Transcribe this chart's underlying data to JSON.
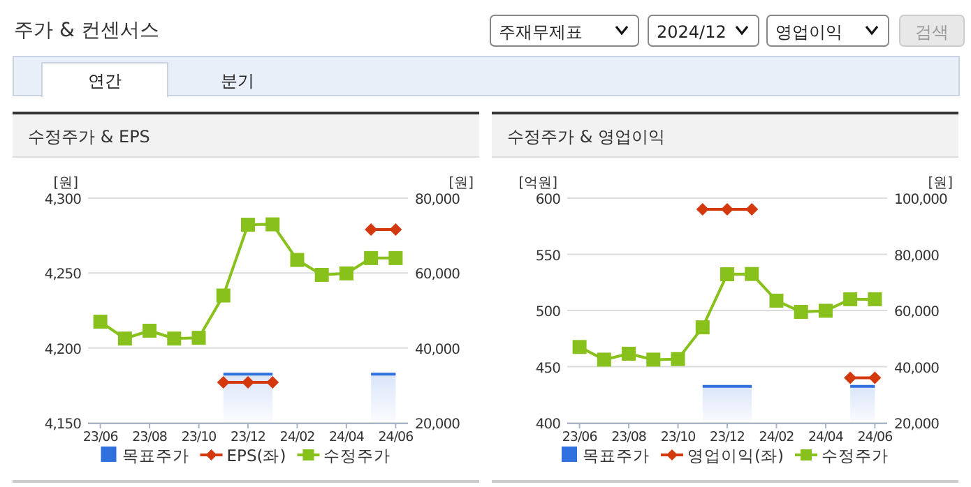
{
  "chart_data": [
    {
      "type": "other",
      "title": "주가 & 컨센서스",
      "annotations": [
        "주재무제표",
        "2024/12",
        "영업이익",
        "검색",
        "연간",
        "분기"
      ]
    },
    {
      "type": "line",
      "title": "수정주가 & EPS",
      "ylabel": "[원]",
      "y2label": "[원]",
      "categories": [
        "23/06",
        null,
        "23/08",
        null,
        "23/10",
        null,
        "23/12",
        null,
        "24/02",
        null,
        "24/04",
        null,
        "24/06"
      ],
      "ylim": [
        4150,
        4300
      ],
      "yticks": [
        {
          "value": 4150,
          "label": "4,150"
        },
        {
          "value": 4200,
          "label": "4,200"
        },
        {
          "value": 4250,
          "label": "4,250"
        },
        {
          "value": 4300,
          "label": "4,300"
        }
      ],
      "y2lim": [
        20000,
        80000
      ],
      "y2ticks": [
        {
          "value": 20000,
          "label": "20,000"
        },
        {
          "value": 40000,
          "label": "40,000"
        },
        {
          "value": 60000,
          "label": "60,000"
        },
        {
          "value": 80000,
          "label": "80,000"
        }
      ],
      "grid": "y",
      "legend": "bottom",
      "series": [
        {
          "name": "목표주가",
          "type": "area",
          "axis": "y2",
          "color": "#2f6fde",
          "values": [
            null,
            null,
            null,
            null,
            null,
            33000,
            33000,
            33000,
            null,
            null,
            null,
            33000,
            33000
          ]
        },
        {
          "name": "EPS(좌)",
          "type": "line",
          "marker": "diamond",
          "color": "#d4380d",
          "values": [
            null,
            null,
            null,
            null,
            null,
            4177,
            4177,
            4177,
            null,
            null,
            null,
            4279,
            4279
          ]
        },
        {
          "name": "수정주가",
          "type": "line",
          "marker": "square",
          "axis": "y2",
          "color": "#88c01c",
          "values": [
            47000,
            42500,
            44600,
            42500,
            42700,
            54000,
            72900,
            73000,
            63500,
            59500,
            59900,
            64000,
            64000
          ]
        }
      ]
    },
    {
      "type": "line",
      "title": "수정주가 & 영업이익",
      "ylabel": "[억원]",
      "y2label": "[원]",
      "categories": [
        "23/06",
        null,
        "23/08",
        null,
        "23/10",
        null,
        "23/12",
        null,
        "24/02",
        null,
        "24/04",
        null,
        "24/06"
      ],
      "ylim": [
        400,
        600
      ],
      "yticks": [
        400,
        450,
        500,
        550,
        600
      ],
      "y2lim": [
        20000,
        100000
      ],
      "y2ticks": [
        {
          "value": 20000,
          "label": "20,000"
        },
        {
          "value": 40000,
          "label": "40,000"
        },
        {
          "value": 60000,
          "label": "60,000"
        },
        {
          "value": 80000,
          "label": "80,000"
        },
        {
          "value": 100000,
          "label": "100,000"
        }
      ],
      "grid": "y",
      "legend": "bottom",
      "series": [
        {
          "name": "목표주가",
          "type": "area",
          "axis": "y2",
          "color": "#2f6fde",
          "values": [
            null,
            null,
            null,
            null,
            null,
            33000,
            33000,
            33000,
            null,
            null,
            null,
            33000,
            33000
          ]
        },
        {
          "name": "영업이익(좌)",
          "type": "line",
          "marker": "diamond",
          "color": "#d4380d",
          "values": [
            null,
            null,
            null,
            null,
            null,
            590,
            590,
            590,
            null,
            null,
            null,
            440,
            440
          ]
        },
        {
          "name": "수정주가",
          "type": "line",
          "marker": "square",
          "axis": "y2",
          "color": "#88c01c",
          "values": [
            47000,
            42500,
            44600,
            42500,
            42700,
            54000,
            72900,
            73000,
            63500,
            59500,
            59900,
            64000,
            64000
          ]
        }
      ]
    }
  ]
}
